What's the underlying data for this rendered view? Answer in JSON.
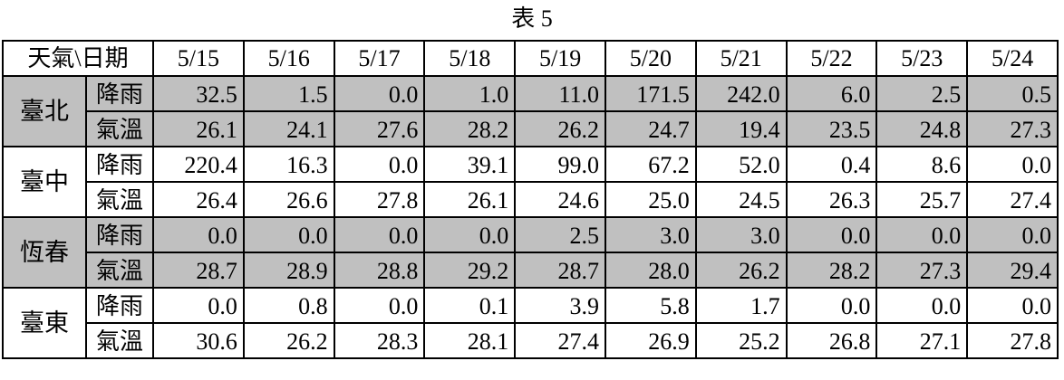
{
  "caption": "表 5",
  "table": {
    "corner": "天氣\\日期",
    "dates": [
      "5/15",
      "5/16",
      "5/17",
      "5/18",
      "5/19",
      "5/20",
      "5/21",
      "5/22",
      "5/23",
      "5/24"
    ],
    "shade_color": "#c0c0c0",
    "stations": [
      {
        "name": "臺北",
        "shaded": true,
        "rows": [
          {
            "metric": "降雨",
            "values": [
              "32.5",
              "1.5",
              "0.0",
              "1.0",
              "11.0",
              "171.5",
              "242.0",
              "6.0",
              "2.5",
              "0.5"
            ]
          },
          {
            "metric": "氣溫",
            "values": [
              "26.1",
              "24.1",
              "27.6",
              "28.2",
              "26.2",
              "24.7",
              "19.4",
              "23.5",
              "24.8",
              "27.3"
            ]
          }
        ]
      },
      {
        "name": "臺中",
        "shaded": false,
        "rows": [
          {
            "metric": "降雨",
            "values": [
              "220.4",
              "16.3",
              "0.0",
              "39.1",
              "99.0",
              "67.2",
              "52.0",
              "0.4",
              "8.6",
              "0.0"
            ]
          },
          {
            "metric": "氣溫",
            "values": [
              "26.4",
              "26.6",
              "27.8",
              "26.1",
              "24.6",
              "25.0",
              "24.5",
              "26.3",
              "25.7",
              "27.4"
            ]
          }
        ]
      },
      {
        "name": "恆春",
        "shaded": true,
        "rows": [
          {
            "metric": "降雨",
            "values": [
              "0.0",
              "0.0",
              "0.0",
              "0.0",
              "2.5",
              "3.0",
              "3.0",
              "0.0",
              "0.0",
              "0.0"
            ]
          },
          {
            "metric": "氣溫",
            "values": [
              "28.7",
              "28.9",
              "28.8",
              "29.2",
              "28.7",
              "28.0",
              "26.2",
              "28.2",
              "27.3",
              "29.4"
            ]
          }
        ]
      },
      {
        "name": "臺東",
        "shaded": false,
        "rows": [
          {
            "metric": "降雨",
            "values": [
              "0.0",
              "0.8",
              "0.0",
              "0.1",
              "3.9",
              "5.8",
              "1.7",
              "0.0",
              "0.0",
              "0.0"
            ]
          },
          {
            "metric": "氣溫",
            "values": [
              "30.6",
              "26.2",
              "28.3",
              "28.1",
              "27.4",
              "26.9",
              "25.2",
              "26.8",
              "27.1",
              "27.8"
            ]
          }
        ]
      }
    ]
  }
}
